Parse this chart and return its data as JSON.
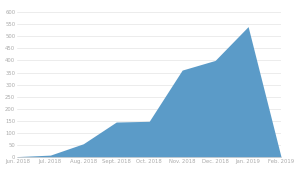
{
  "x_labels": [
    "Jun. 2018",
    "Jul. 2018",
    "Aug. 2018",
    "Sept. 2018",
    "Oct. 2018",
    "Nov. 2018",
    "Dec. 2018",
    "Jan. 2019",
    "Feb. 2019"
  ],
  "x_positions": [
    0,
    1,
    2,
    3,
    4,
    5,
    6,
    7,
    8
  ],
  "y_values": [
    2,
    8,
    55,
    145,
    148,
    360,
    400,
    540,
    0
  ],
  "area_color": "#5b9bc8",
  "background_color": "#ffffff",
  "ylim": [
    0,
    630
  ],
  "yticks": [
    0,
    50,
    100,
    150,
    200,
    250,
    300,
    350,
    400,
    450,
    500,
    550,
    600
  ],
  "tick_label_color": "#aaaaaa",
  "grid_color": "#dddddd",
  "spine_color": "#cccccc"
}
